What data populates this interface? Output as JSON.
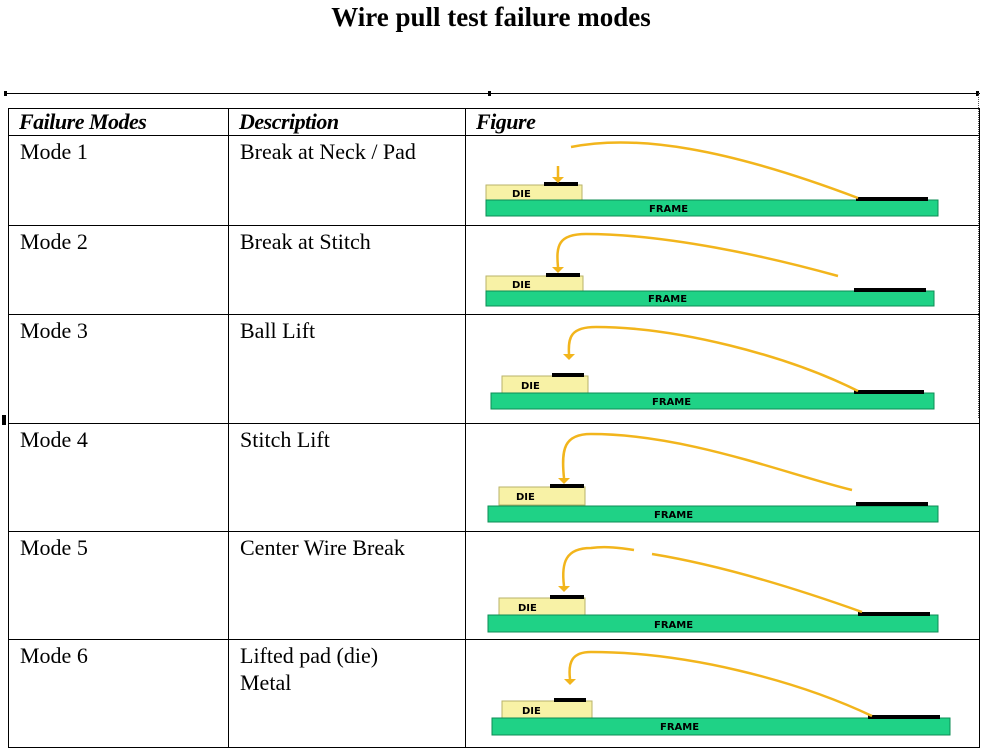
{
  "title": "Wire pull test failure modes",
  "table": {
    "headers": [
      "Failure Modes",
      "Description",
      "Figure"
    ],
    "rows": [
      {
        "mode": "Mode 1",
        "description": "Break at Neck / Pad",
        "die_label": "DIE",
        "frame_label": "FRAME"
      },
      {
        "mode": "Mode 2",
        "description": "Break at Stitch",
        "die_label": "DIE",
        "frame_label": "FRAME"
      },
      {
        "mode": "Mode 3",
        "description": "Ball Lift",
        "die_label": "DIE",
        "frame_label": "FRAME"
      },
      {
        "mode": "Mode 4",
        "description": "Stitch Lift",
        "die_label": "DIE",
        "frame_label": "FRAME"
      },
      {
        "mode": "Mode 5",
        "description": "Center Wire Break",
        "die_label": "DIE",
        "frame_label": "FRAME"
      },
      {
        "mode": "Mode 6",
        "description": "Lifted pad (die) Metal",
        "die_label": "DIE",
        "frame_label": "FRAME"
      }
    ]
  },
  "colors": {
    "wire": "#f2b51c",
    "die": "#f8f2a6",
    "frame": "#1fd286",
    "pad": "#000000"
  }
}
